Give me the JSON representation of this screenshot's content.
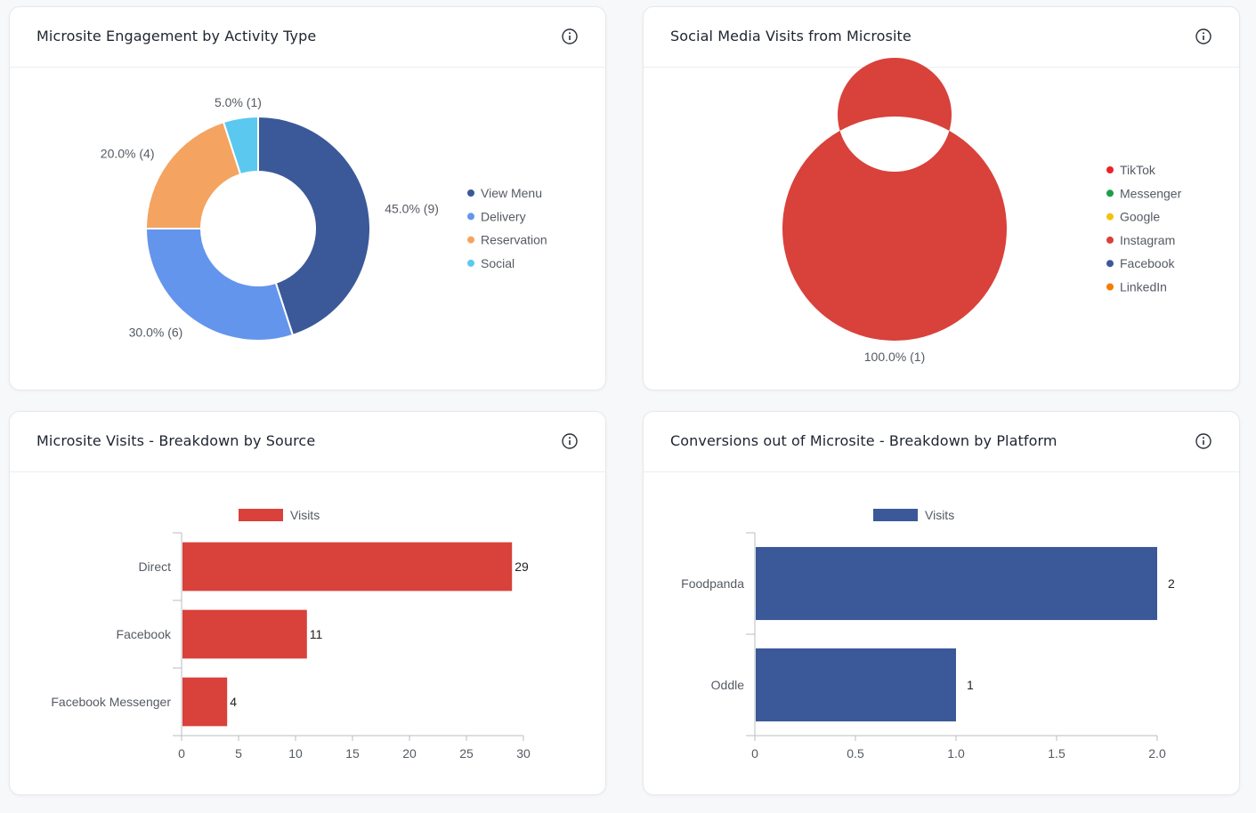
{
  "cards": {
    "engagement": {
      "title": "Microsite Engagement by Activity Type"
    },
    "social": {
      "title": "Social Media Visits from Microsite"
    },
    "visits": {
      "title": "Microsite Visits - Breakdown by Source"
    },
    "conversions": {
      "title": "Conversions out of Microsite - Breakdown by Platform"
    }
  },
  "chart_data": [
    {
      "id": "engagement",
      "type": "pie",
      "subtype": "donut",
      "title": "Microsite Engagement by Activity Type",
      "categories": [
        "View Menu",
        "Delivery",
        "Reservation",
        "Social"
      ],
      "values": [
        9,
        6,
        4,
        1
      ],
      "percent_labels": [
        "45.0% (9)",
        "30.0% (6)",
        "20.0% (4)",
        "5.0% (1)"
      ],
      "colors": [
        "#3b5998",
        "#6495ed",
        "#f4a460",
        "#5bc8f0"
      ],
      "legend_position": "right"
    },
    {
      "id": "social",
      "type": "pie",
      "subtype": "donut",
      "title": "Social Media Visits from Microsite",
      "categories": [
        "TikTok",
        "Messenger",
        "Google",
        "Instagram",
        "Facebook",
        "LinkedIn"
      ],
      "values": [
        0,
        0,
        0,
        1,
        0,
        0
      ],
      "percent_labels": [
        "",
        "",
        "",
        "100.0% (1)",
        "",
        ""
      ],
      "colors": [
        "#e8242a",
        "#1e9e4a",
        "#f4c20d",
        "#d9413b",
        "#3b5998",
        "#f57c00"
      ],
      "legend_position": "right"
    },
    {
      "id": "visits",
      "type": "bar",
      "orientation": "horizontal",
      "title": "Microsite Visits - Breakdown by Source",
      "categories": [
        "Direct",
        "Facebook",
        "Facebook Messenger"
      ],
      "series": [
        {
          "name": "Visits",
          "values": [
            29,
            11,
            4
          ],
          "color": "#d9413b"
        }
      ],
      "xlim": [
        0,
        30
      ],
      "xticks": [
        "0",
        "5",
        "10",
        "15",
        "20",
        "25",
        "30"
      ],
      "legend_position": "top"
    },
    {
      "id": "conversions",
      "type": "bar",
      "orientation": "horizontal",
      "title": "Conversions out of Microsite - Breakdown by Platform",
      "categories": [
        "Foodpanda",
        "Oddle"
      ],
      "series": [
        {
          "name": "Visits",
          "values": [
            2,
            1
          ],
          "color": "#3b5998"
        }
      ],
      "xlim": [
        0,
        2
      ],
      "xticks": [
        "0",
        "0.5",
        "1.0",
        "1.5",
        "2.0"
      ],
      "legend_position": "top"
    }
  ]
}
